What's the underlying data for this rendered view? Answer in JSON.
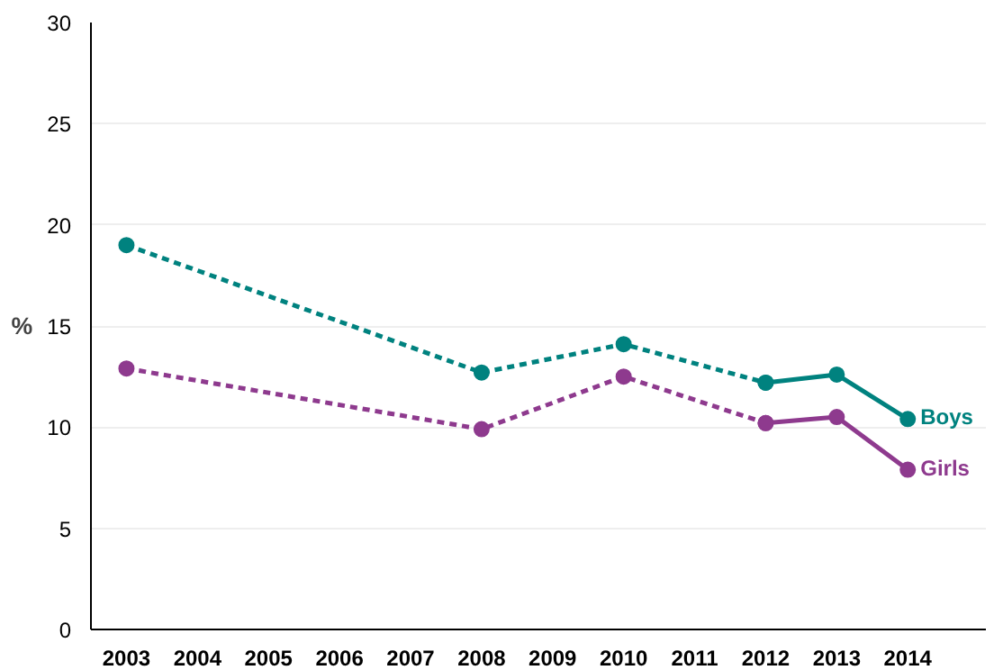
{
  "chart_data": {
    "type": "line",
    "ylabel": "%",
    "categories": [
      "2003",
      "2004",
      "2005",
      "2006",
      "2007",
      "2008",
      "2009",
      "2010",
      "2011",
      "2012",
      "2013",
      "2014"
    ],
    "ylim": [
      0,
      30
    ],
    "yticks": [
      0,
      5,
      10,
      15,
      20,
      25,
      30
    ],
    "grid": "y",
    "marker": "circle",
    "series": [
      {
        "color": "#00827f",
        "line_style": "dashed",
        "values": [
          19.0,
          null,
          null,
          null,
          null,
          12.7,
          null,
          14.1,
          null,
          12.2,
          null,
          null
        ]
      },
      {
        "name": "Boys",
        "color": "#00827f",
        "line_style": "solid",
        "values": [
          null,
          null,
          null,
          null,
          null,
          null,
          null,
          null,
          null,
          12.2,
          12.6,
          10.4
        ]
      },
      {
        "color": "#8e3a8e",
        "line_style": "dashed",
        "values": [
          12.9,
          null,
          null,
          null,
          null,
          9.9,
          null,
          12.5,
          null,
          10.2,
          null,
          null
        ]
      },
      {
        "name": "Girls",
        "color": "#8e3a8e",
        "line_style": "solid",
        "values": [
          null,
          null,
          null,
          null,
          null,
          null,
          null,
          null,
          null,
          10.2,
          10.5,
          7.9
        ]
      }
    ]
  }
}
